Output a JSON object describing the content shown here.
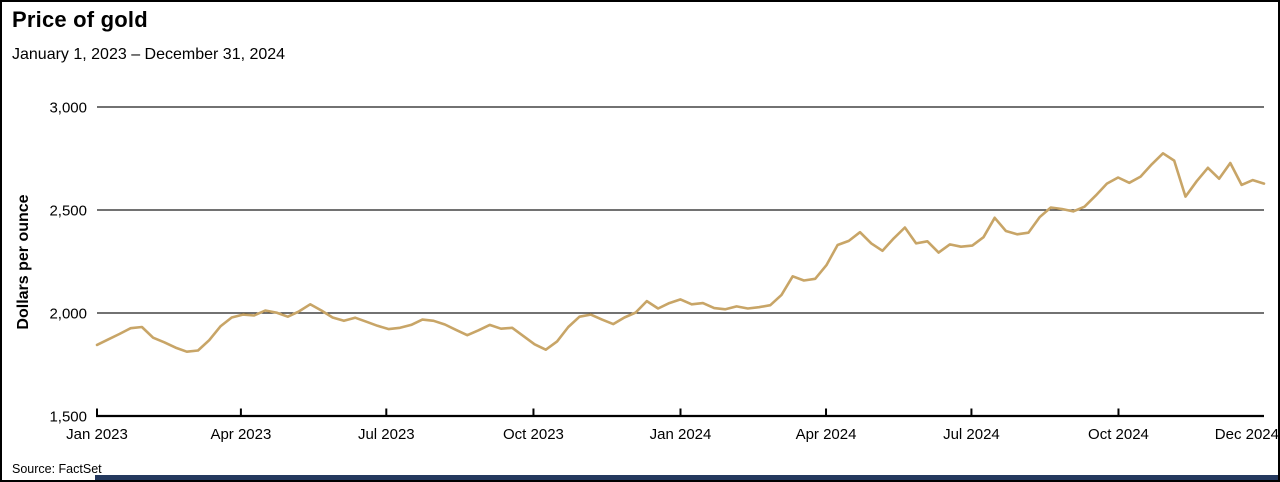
{
  "header": {
    "title": "Price of gold",
    "subtitle": "January 1, 2023 – December 31, 2024"
  },
  "source_note": "Source: FactSet",
  "colors": {
    "line": "#c8a567",
    "gridline": "#1f1f1f",
    "axis": "#000000",
    "footer_bar": "#24395e"
  },
  "chart_data": {
    "type": "line",
    "title": "Price of gold",
    "subtitle_range": "January 1, 2023 – December 31, 2024",
    "xlabel": "",
    "ylabel": "Dollars per ounce",
    "ylim": [
      1500,
      3000
    ],
    "grid": "horizontal",
    "legend": "none",
    "yticks": [
      {
        "label": "3,000",
        "value": 3000
      },
      {
        "label": "2,500",
        "value": 2500
      },
      {
        "label": "2,000",
        "value": 2000
      },
      {
        "label": "1,500",
        "value": 1500
      }
    ],
    "xticks": [
      {
        "label": "Jan 2023",
        "t": 0.0,
        "tick": true
      },
      {
        "label": "Apr 2023",
        "t": 0.1233,
        "tick": true
      },
      {
        "label": "Jul 2023",
        "t": 0.2479,
        "tick": true
      },
      {
        "label": "Oct 2023",
        "t": 0.374,
        "tick": true
      },
      {
        "label": "Jan 2024",
        "t": 0.5,
        "tick": true
      },
      {
        "label": "Apr 2024",
        "t": 0.6247,
        "tick": true
      },
      {
        "label": "Jul 2024",
        "t": 0.7493,
        "tick": true
      },
      {
        "label": "Oct 2024",
        "t": 0.8753,
        "tick": true
      },
      {
        "label": "Dec 2024",
        "t": 1.0,
        "tick": false
      }
    ],
    "series": [
      {
        "name": "Price of gold (dollars per ounce)",
        "color": "#c8a567",
        "x_start_label": "Jan 2023",
        "x_end_label": "Dec 2024",
        "sampling": "weekly",
        "values": [
          1845,
          1872,
          1898,
          1926,
          1932,
          1880,
          1858,
          1832,
          1812,
          1818,
          1868,
          1935,
          1978,
          1992,
          1988,
          2012,
          2002,
          1982,
          2008,
          2042,
          2012,
          1978,
          1962,
          1977,
          1958,
          1938,
          1922,
          1928,
          1942,
          1968,
          1962,
          1944,
          1918,
          1892,
          1916,
          1942,
          1924,
          1928,
          1888,
          1848,
          1822,
          1862,
          1932,
          1982,
          1992,
          1968,
          1946,
          1978,
          2002,
          2058,
          2022,
          2048,
          2066,
          2042,
          2048,
          2024,
          2018,
          2032,
          2022,
          2028,
          2038,
          2088,
          2178,
          2158,
          2166,
          2232,
          2330,
          2350,
          2392,
          2338,
          2302,
          2362,
          2415,
          2338,
          2348,
          2293,
          2333,
          2322,
          2327,
          2368,
          2462,
          2398,
          2382,
          2390,
          2465,
          2512,
          2505,
          2493,
          2516,
          2570,
          2628,
          2658,
          2632,
          2662,
          2722,
          2775,
          2740,
          2565,
          2640,
          2705,
          2652,
          2728,
          2622,
          2645,
          2628
        ]
      }
    ]
  }
}
